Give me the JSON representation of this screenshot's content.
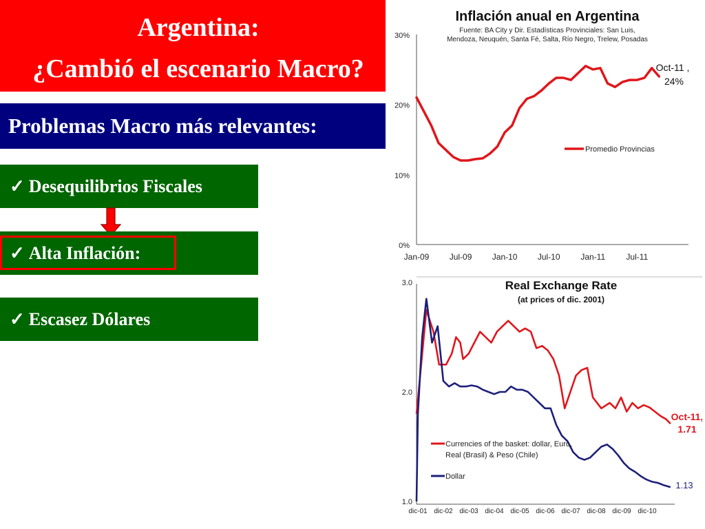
{
  "slide": {
    "title_line1": "Argentina:",
    "title_line2": "¿Cambió el escenario Macro?",
    "subtitle": "Problemas Macro más relevantes:",
    "check_glyph": "✓",
    "items": [
      {
        "label": "Desequilibrios  Fiscales"
      },
      {
        "label": "Alta Inflación:"
      },
      {
        "label": "Escasez Dólares"
      }
    ],
    "colors": {
      "title_bg": "#ff0000",
      "subtitle_bg": "#00007f",
      "item_bg": "#006600",
      "arrow": "#ff0000"
    }
  },
  "chart_data": [
    {
      "type": "line",
      "title": "Inflación anual en Argentina",
      "subtitle_lines": [
        "Fuente: BA City y Dir. Estadísticas Provinciales: San Luis,",
        "Mendoza, Neuquén,  Santa Fé, Salta, Río Negro, Trelew,  Posadas"
      ],
      "x_tick_labels": [
        "Jan-09",
        "Jul-09",
        "Jan-10",
        "Jul-10",
        "Jan-11",
        "Jul-11"
      ],
      "y_tick_labels": [
        "0%",
        "10%",
        "20%",
        "30%"
      ],
      "ylim": [
        0,
        30
      ],
      "grid": false,
      "legend_position": "right",
      "series": [
        {
          "name": "Promedio Provincias",
          "color": "#e0161b",
          "x": [
            "2009-01",
            "2009-02",
            "2009-03",
            "2009-04",
            "2009-05",
            "2009-06",
            "2009-07",
            "2009-08",
            "2009-09",
            "2009-10",
            "2009-11",
            "2009-12",
            "2010-01",
            "2010-02",
            "2010-03",
            "2010-04",
            "2010-05",
            "2010-06",
            "2010-07",
            "2010-08",
            "2010-09",
            "2010-10",
            "2010-11",
            "2010-12",
            "2011-01",
            "2011-02",
            "2011-03",
            "2011-04",
            "2011-05",
            "2011-06",
            "2011-07",
            "2011-08",
            "2011-09",
            "2011-10"
          ],
          "y": [
            21,
            19,
            17,
            14.5,
            13.5,
            12.5,
            12,
            12,
            12.2,
            12.3,
            13,
            14,
            16,
            17,
            19.5,
            20.8,
            21.2,
            22,
            23,
            23.8,
            23.8,
            23.5,
            24.5,
            25.5,
            25,
            25.2,
            23,
            22.5,
            23.2,
            23.5,
            23.5,
            23.8,
            25.2,
            24
          ]
        }
      ],
      "annotation": {
        "line1": "Oct-11 ,",
        "line2": "24%"
      }
    },
    {
      "type": "line",
      "title": "Real Exchange Rate",
      "subtitle": "(at prices of dic. 2001)",
      "x_tick_labels": [
        "dic-01",
        "dic-02",
        "dic-03",
        "dic-04",
        "dic-05",
        "dic-06",
        "dic-07",
        "dic-08",
        "dic-09",
        "dic-10"
      ],
      "y_tick_labels": [
        "1.0",
        "2.0",
        "3.0"
      ],
      "ylim": [
        1.0,
        3.0
      ],
      "grid": false,
      "legend_position": "left",
      "series": [
        {
          "name": "Currencies of the basket: dollar, Euro,",
          "name_line2": "Real (Brasil) & Peso (Chile)",
          "color": "#e0161b",
          "x": [
            2001.95,
            2002.3,
            2002.55,
            2002.75,
            2003.0,
            2003.2,
            2003.35,
            2003.5,
            2003.6,
            2003.8,
            2004.0,
            2004.2,
            2004.4,
            2004.6,
            2004.8,
            2005.0,
            2005.2,
            2005.4,
            2005.6,
            2005.8,
            2006.0,
            2006.2,
            2006.4,
            2006.6,
            2006.8,
            2007.0,
            2007.2,
            2007.4,
            2007.6,
            2007.8,
            2008.0,
            2008.2,
            2008.5,
            2008.8,
            2009.0,
            2009.2,
            2009.4,
            2009.6,
            2009.8,
            2010.0,
            2010.2,
            2010.4,
            2010.6,
            2010.8,
            2010.95
          ],
          "y": [
            1.8,
            2.75,
            2.55,
            2.25,
            2.25,
            2.35,
            2.5,
            2.45,
            2.3,
            2.35,
            2.45,
            2.55,
            2.5,
            2.45,
            2.55,
            2.6,
            2.65,
            2.6,
            2.55,
            2.58,
            2.55,
            2.4,
            2.42,
            2.38,
            2.3,
            2.15,
            1.85,
            2.0,
            2.15,
            2.2,
            2.22,
            1.95,
            1.85,
            1.9,
            1.85,
            1.95,
            1.82,
            1.9,
            1.85,
            1.88,
            1.86,
            1.82,
            1.78,
            1.75,
            1.71
          ]
        },
        {
          "name": "Dollar",
          "color": "#1c1f7a",
          "x": [
            2001.95,
            2002.0,
            2002.15,
            2002.3,
            2002.5,
            2002.7,
            2002.9,
            2003.1,
            2003.3,
            2003.5,
            2003.7,
            2003.9,
            2004.1,
            2004.3,
            2004.5,
            2004.7,
            2004.9,
            2005.1,
            2005.3,
            2005.5,
            2005.7,
            2005.9,
            2006.1,
            2006.3,
            2006.5,
            2006.7,
            2006.9,
            2007.1,
            2007.3,
            2007.5,
            2007.7,
            2007.9,
            2008.1,
            2008.3,
            2008.5,
            2008.7,
            2008.9,
            2009.1,
            2009.3,
            2009.5,
            2009.7,
            2009.9,
            2010.1,
            2010.3,
            2010.5,
            2010.7,
            2010.95
          ],
          "y": [
            1.0,
            1.8,
            2.5,
            2.85,
            2.45,
            2.6,
            2.1,
            2.05,
            2.08,
            2.05,
            2.05,
            2.06,
            2.05,
            2.02,
            2.0,
            1.98,
            2.0,
            2.0,
            2.05,
            2.02,
            2.02,
            2.0,
            1.95,
            1.9,
            1.85,
            1.85,
            1.7,
            1.6,
            1.55,
            1.45,
            1.4,
            1.38,
            1.4,
            1.45,
            1.5,
            1.52,
            1.48,
            1.42,
            1.35,
            1.3,
            1.27,
            1.23,
            1.2,
            1.18,
            1.17,
            1.15,
            1.13
          ]
        }
      ],
      "annotations": [
        {
          "text_line1": "Oct-11,",
          "text_line2": "1.71",
          "color": "#e0161b"
        },
        {
          "text": "1.13",
          "color": "#1c1f7a"
        }
      ]
    }
  ]
}
